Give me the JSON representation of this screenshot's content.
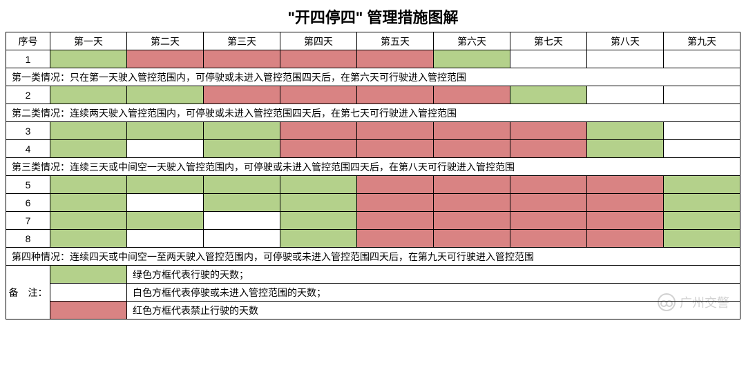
{
  "title": "\"开四停四\" 管理措施图解",
  "title_fontsize": 22,
  "colors": {
    "green": "#b4d18b",
    "red": "#d98383",
    "white": "#ffffff",
    "border": "#000000"
  },
  "table": {
    "header": {
      "idx": "序号",
      "days": [
        "第一天",
        "第二天",
        "第三天",
        "第四天",
        "第五天",
        "第六天",
        "第七天",
        "第八天",
        "第九天"
      ]
    },
    "groups": [
      {
        "rows": [
          {
            "idx": "1",
            "cells": [
              "green",
              "red",
              "red",
              "red",
              "red",
              "green",
              "white",
              "white",
              "white"
            ]
          }
        ],
        "desc": "第一类情况：只在第一天驶入管控范围内，可停驶或未进入管控范围四天后，在第六天可行驶进入管控范围"
      },
      {
        "rows": [
          {
            "idx": "2",
            "cells": [
              "green",
              "green",
              "red",
              "red",
              "red",
              "red",
              "green",
              "white",
              "white"
            ]
          }
        ],
        "desc": "第二类情况：连续两天驶入管控范围内，可停驶或未进入管控范围四天后，在第七天可行驶进入管控范围"
      },
      {
        "rows": [
          {
            "idx": "3",
            "cells": [
              "green",
              "green",
              "green",
              "red",
              "red",
              "red",
              "red",
              "green",
              "white"
            ]
          },
          {
            "idx": "4",
            "cells": [
              "green",
              "white",
              "green",
              "red",
              "red",
              "red",
              "red",
              "green",
              "white"
            ]
          }
        ],
        "desc": "第三类情况：连续三天或中间空一天驶入管控范围内，可停驶或未进入管控范围四天后，在第八天可行驶进入管控范围"
      },
      {
        "rows": [
          {
            "idx": "5",
            "cells": [
              "green",
              "green",
              "green",
              "green",
              "red",
              "red",
              "red",
              "red",
              "green"
            ]
          },
          {
            "idx": "6",
            "cells": [
              "green",
              "white",
              "green",
              "green",
              "red",
              "red",
              "red",
              "red",
              "green"
            ]
          },
          {
            "idx": "7",
            "cells": [
              "green",
              "green",
              "white",
              "green",
              "red",
              "red",
              "red",
              "red",
              "green"
            ]
          },
          {
            "idx": "8",
            "cells": [
              "green",
              "white",
              "white",
              "green",
              "red",
              "red",
              "red",
              "red",
              "green"
            ]
          }
        ],
        "desc": "第四种情况：连续四天或中间空一至两天驶入管控范围内，可停驶或未进入管控范围四天后，在第九天可行驶进入管控范围"
      }
    ],
    "legend": {
      "label": "备　注：",
      "items": [
        {
          "color": "green",
          "text": "绿色方框代表行驶的天数；"
        },
        {
          "color": "white",
          "text": "白色方框代表停驶或未进入管控范围的天数；"
        },
        {
          "color": "red",
          "text": "红色方框代表禁止行驶的天数"
        }
      ]
    }
  },
  "watermark": {
    "text": "广州交警",
    "fontsize": 18
  },
  "typography": {
    "body_fontsize": 14,
    "desc_fontsize": 14
  }
}
